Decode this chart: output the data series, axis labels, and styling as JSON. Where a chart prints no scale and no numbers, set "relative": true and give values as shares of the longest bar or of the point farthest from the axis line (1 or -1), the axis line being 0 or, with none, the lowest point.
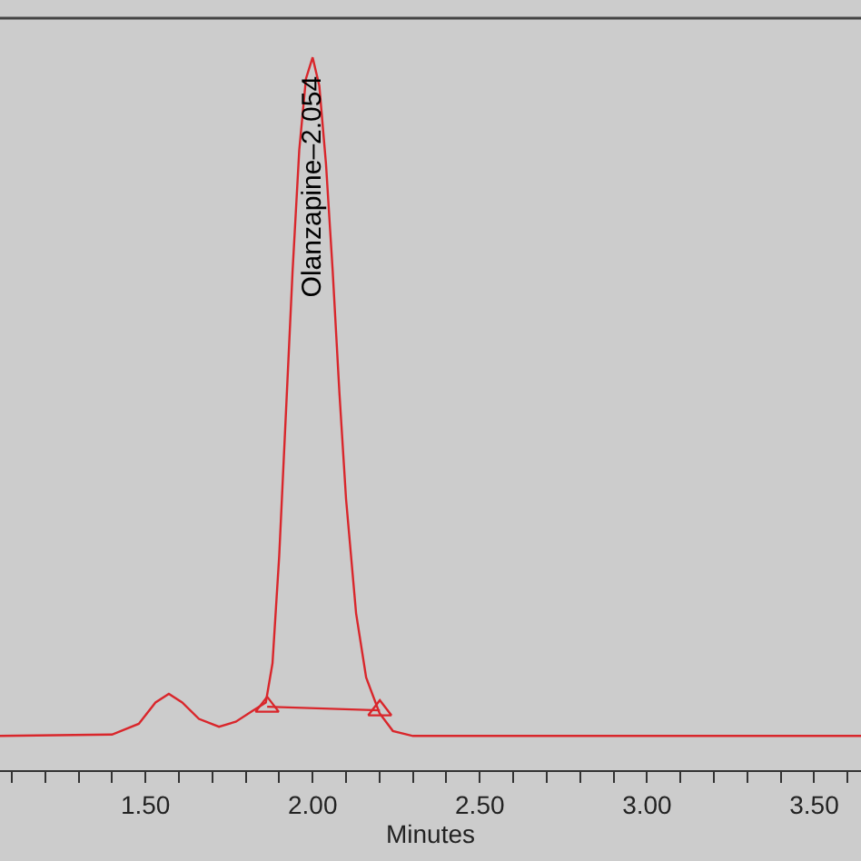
{
  "chart_data": {
    "type": "line",
    "xlabel": "Minutes",
    "relative": true,
    "grid": false,
    "marker": "none",
    "line_style": "solid",
    "xlim": [
      1.065,
      3.64
    ],
    "xticks": [
      {
        "value": 1.1,
        "label": null
      },
      {
        "value": 1.2,
        "label": null
      },
      {
        "value": 1.3,
        "label": null
      },
      {
        "value": 1.4,
        "label": null
      },
      {
        "value": 1.5,
        "label": "1.50"
      },
      {
        "value": 1.6,
        "label": null
      },
      {
        "value": 1.7,
        "label": null
      },
      {
        "value": 1.8,
        "label": null
      },
      {
        "value": 1.9,
        "label": null
      },
      {
        "value": 2.0,
        "label": "2.00"
      },
      {
        "value": 2.1,
        "label": null
      },
      {
        "value": 2.2,
        "label": null
      },
      {
        "value": 2.3,
        "label": null
      },
      {
        "value": 2.4,
        "label": null
      },
      {
        "value": 2.5,
        "label": "2.50"
      },
      {
        "value": 2.6,
        "label": null
      },
      {
        "value": 2.7,
        "label": null
      },
      {
        "value": 2.8,
        "label": null
      },
      {
        "value": 2.9,
        "label": null
      },
      {
        "value": 3.0,
        "label": "3.00"
      },
      {
        "value": 3.1,
        "label": null
      },
      {
        "value": 3.2,
        "label": null
      },
      {
        "value": 3.3,
        "label": null
      },
      {
        "value": 3.4,
        "label": null
      },
      {
        "value": 3.5,
        "label": "3.50"
      },
      {
        "value": 3.6,
        "label": null
      }
    ],
    "series": [
      {
        "color": "#d9262b",
        "x": [
          1.065,
          1.4,
          1.48,
          1.53,
          1.57,
          1.61,
          1.66,
          1.72,
          1.77,
          1.82,
          1.86,
          1.88,
          1.9,
          1.92,
          1.94,
          1.96,
          1.98,
          2.0,
          2.02,
          2.04,
          2.06,
          2.08,
          2.1,
          2.13,
          2.16,
          2.2,
          2.24,
          2.3,
          3.64
        ],
        "values": [
          0.048,
          0.05,
          0.065,
          0.095,
          0.107,
          0.095,
          0.072,
          0.061,
          0.068,
          0.083,
          0.095,
          0.15,
          0.3,
          0.5,
          0.7,
          0.87,
          0.97,
          1.0,
          0.96,
          0.85,
          0.7,
          0.53,
          0.38,
          0.22,
          0.13,
          0.08,
          0.055,
          0.048,
          0.048
        ]
      },
      {
        "color": "#d9262b",
        "marker": "triangle",
        "x": [
          1.864,
          2.201
        ],
        "values": [
          0.089,
          0.084
        ]
      }
    ],
    "annotations": [
      "Olanzapine–2.054"
    ]
  }
}
